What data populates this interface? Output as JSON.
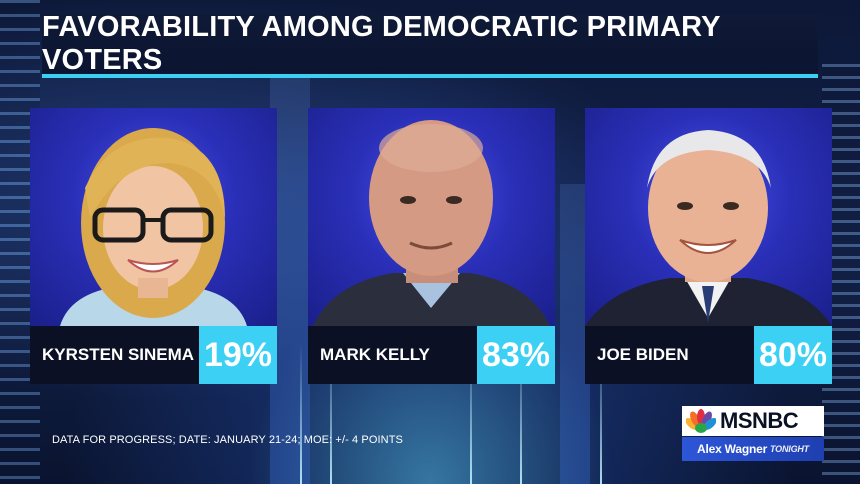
{
  "title": "FAVORABILITY AMONG DEMOCRATIC PRIMARY VOTERS",
  "candidates": [
    {
      "name": "KYRSTEN SINEMA",
      "percent": "19%"
    },
    {
      "name": "MARK KELLY",
      "percent": "83%"
    },
    {
      "name": "JOE BIDEN",
      "percent": "80%"
    }
  ],
  "source": "DATA FOR PROGRESS; DATE: JANUARY 21-24; MOE: +/- 4 POINTS",
  "network": {
    "name": "MSNBC",
    "show_name": "Alex Wagner",
    "show_suffix": "TONIGHT"
  },
  "colors": {
    "accent": "#3cd0f4",
    "name_box": "#0b1024",
    "photo_bg": "#2a2fb8"
  }
}
